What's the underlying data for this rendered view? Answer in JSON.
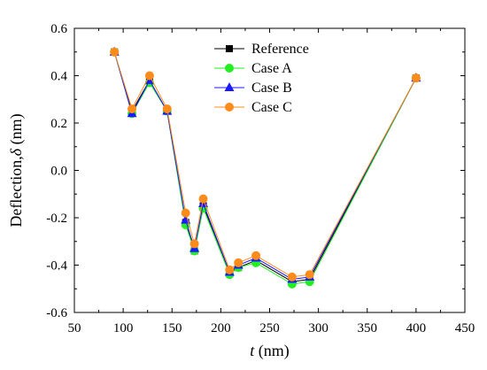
{
  "chart_data": {
    "type": "line",
    "xlabel_prefix": "t",
    "xlabel_suffix": " (nm)",
    "ylabel_prefix": "Deflection,",
    "ylabel_symbol": "δ",
    "ylabel_suffix": " (nm)",
    "xlim": [
      50,
      450
    ],
    "ylim": [
      -0.6,
      0.6
    ],
    "x_ticks": [
      50,
      100,
      150,
      200,
      250,
      300,
      350,
      400,
      450
    ],
    "y_ticks": [
      -0.6,
      -0.4,
      -0.2,
      0.0,
      0.2,
      0.4,
      0.6
    ],
    "x_tick_labels": [
      "50",
      "100",
      "150",
      "200",
      "250",
      "300",
      "350",
      "400",
      "450"
    ],
    "y_tick_labels": [
      "-0.6",
      "-0.4",
      "-0.2",
      "0.0",
      "0.2",
      "0.4",
      "0.6"
    ],
    "x": [
      91,
      109,
      127,
      145,
      164,
      173,
      182,
      209,
      218,
      236,
      273,
      291,
      400
    ],
    "legend_position": "top-center",
    "grid": false,
    "series": [
      {
        "name": "Reference",
        "color": "#000000",
        "marker": "square",
        "values": [
          0.5,
          0.25,
          0.38,
          0.25,
          -0.22,
          -0.34,
          -0.15,
          -0.43,
          -0.41,
          -0.38,
          -0.47,
          -0.46,
          0.39
        ]
      },
      {
        "name": "Case A",
        "color": "#22ee22",
        "marker": "circle",
        "values": [
          0.5,
          0.24,
          0.37,
          0.25,
          -0.23,
          -0.34,
          -0.16,
          -0.44,
          -0.41,
          -0.39,
          -0.48,
          -0.47,
          0.39
        ]
      },
      {
        "name": "Case B",
        "color": "#1a1aff",
        "marker": "triangle",
        "values": [
          0.5,
          0.24,
          0.38,
          0.25,
          -0.21,
          -0.33,
          -0.14,
          -0.43,
          -0.4,
          -0.37,
          -0.46,
          -0.45,
          0.39
        ]
      },
      {
        "name": "Case C",
        "color": "#ff8c1a",
        "marker": "circle",
        "values": [
          0.5,
          0.26,
          0.4,
          0.26,
          -0.18,
          -0.31,
          -0.12,
          -0.42,
          -0.39,
          -0.36,
          -0.45,
          -0.44,
          0.39
        ]
      }
    ]
  }
}
